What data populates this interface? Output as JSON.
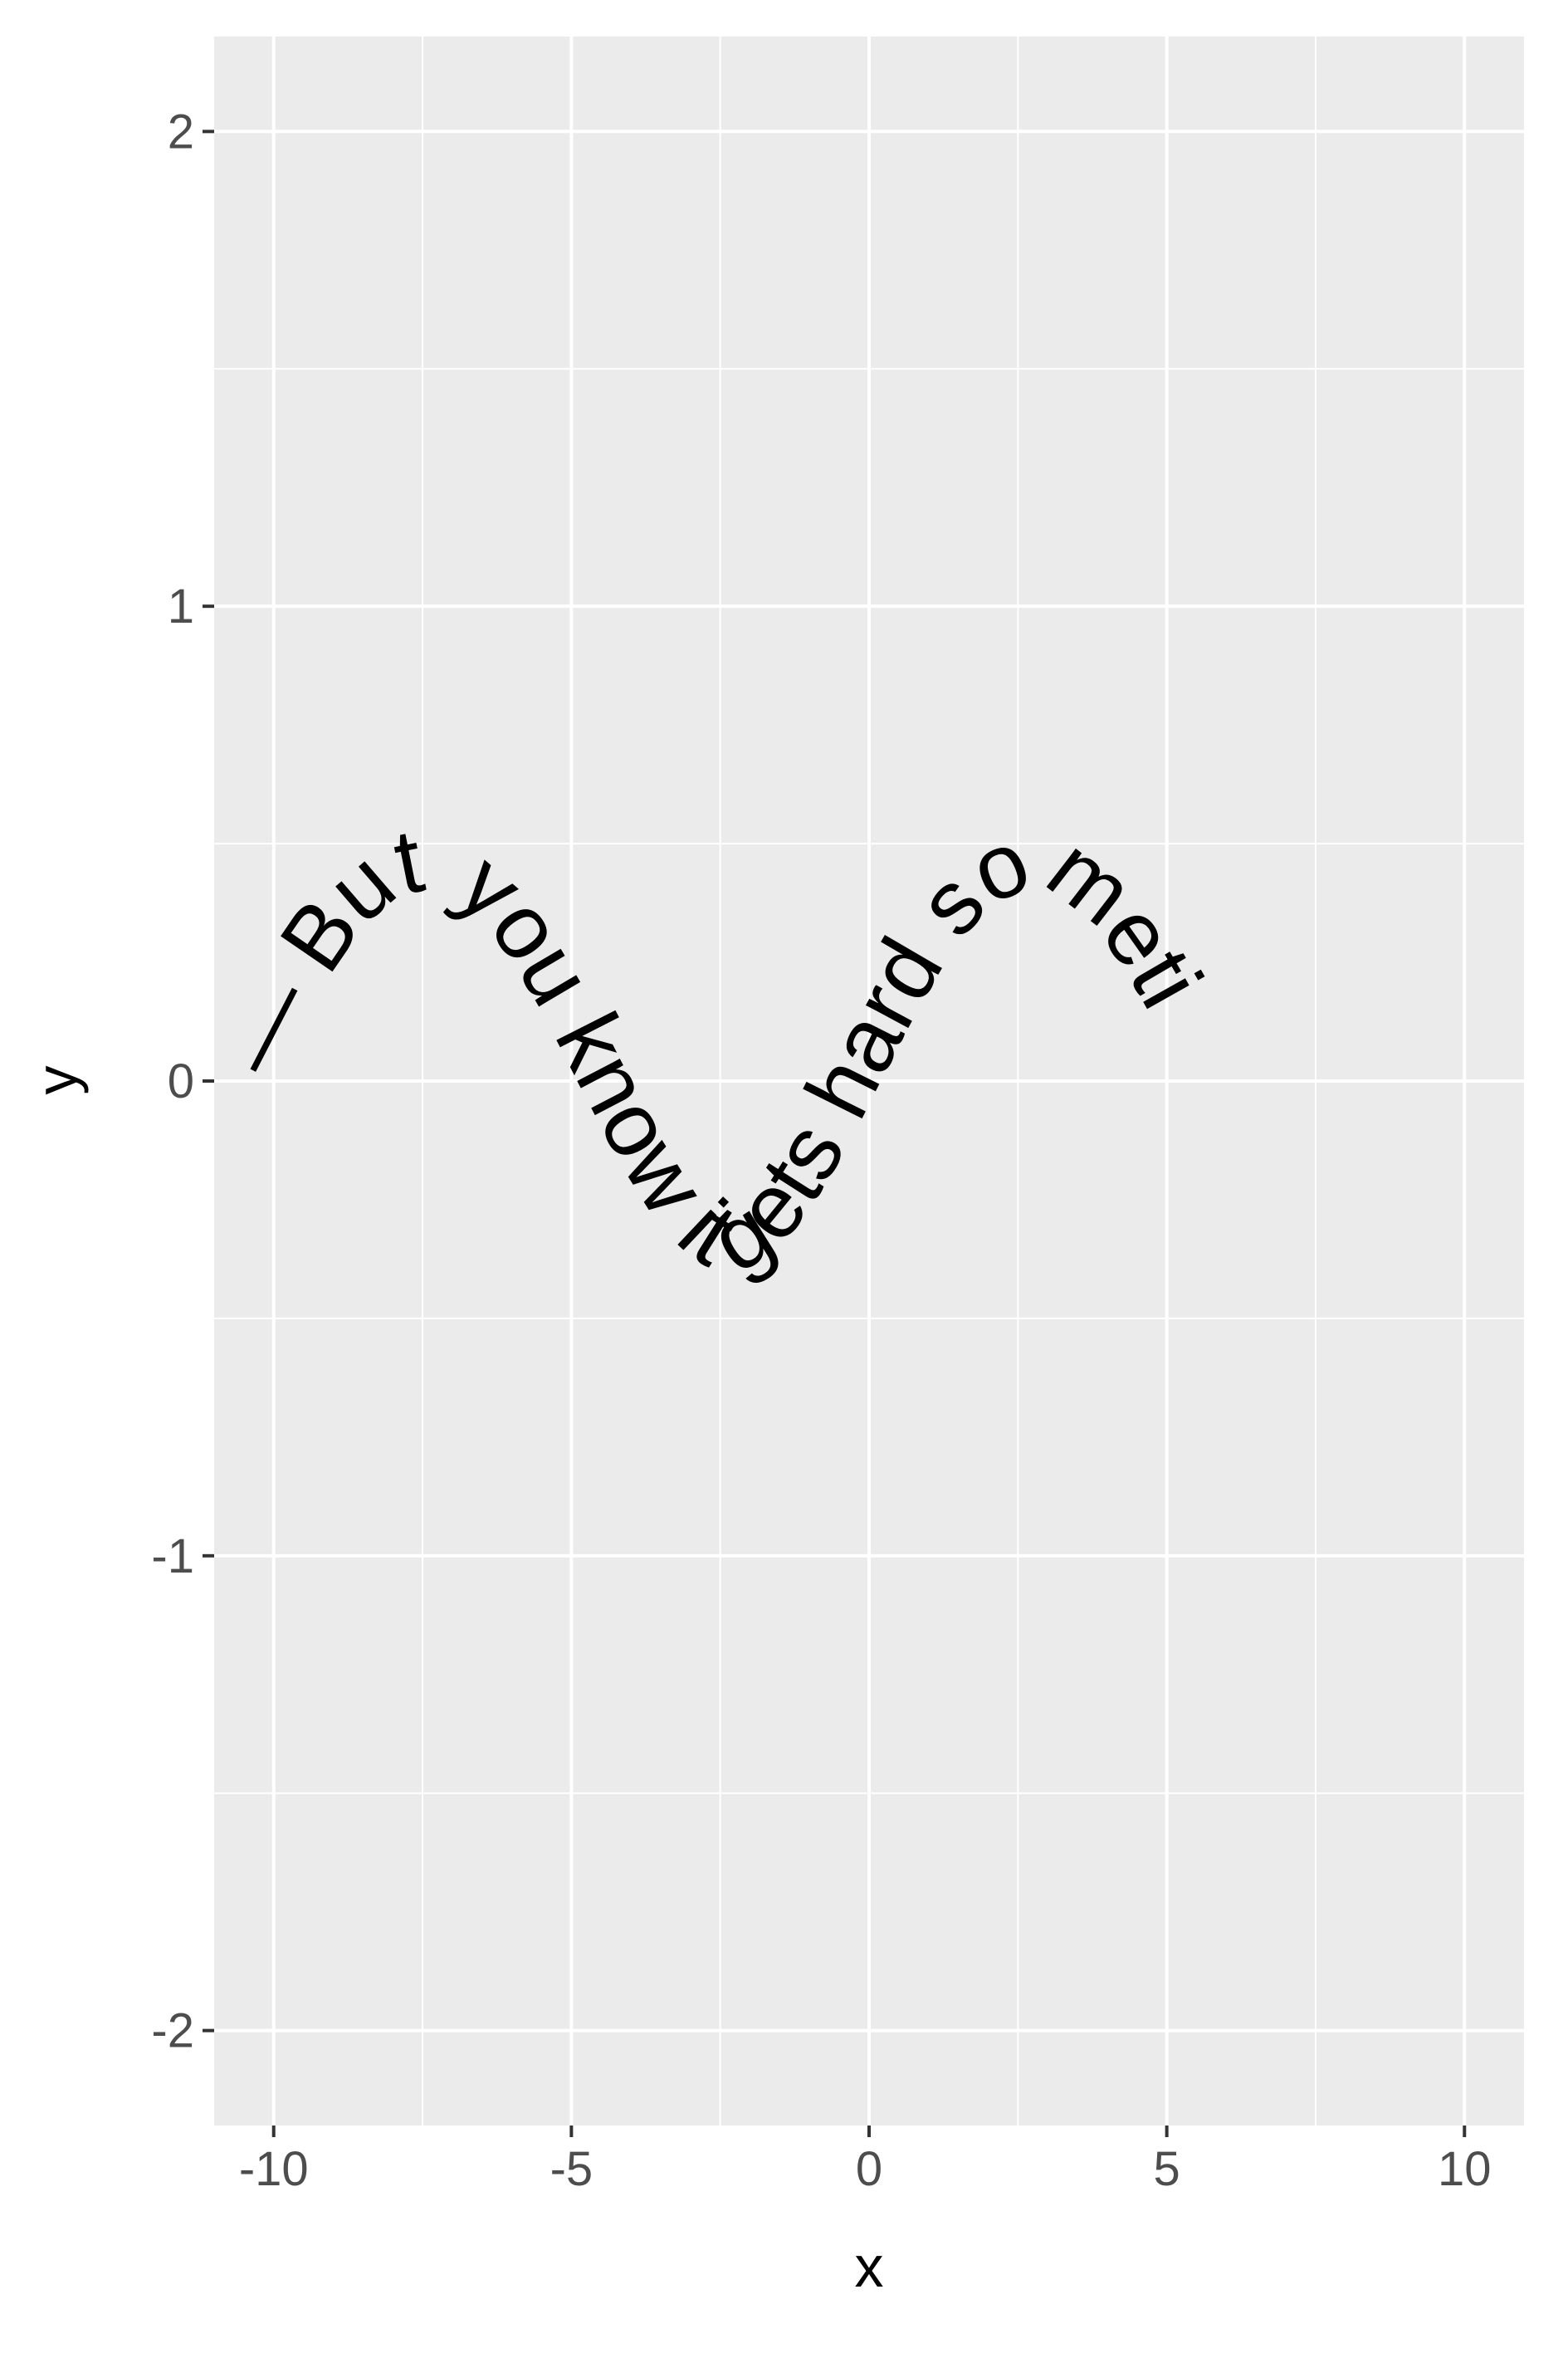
{
  "chart_data": {
    "type": "line",
    "title": "",
    "xlabel": "x",
    "ylabel": "y",
    "xlim": [
      -11,
      11
    ],
    "ylim": [
      -2.2,
      2.2
    ],
    "x_ticks": [
      -10,
      -5,
      0,
      5,
      10
    ],
    "x_tick_labels": [
      "-10",
      "-5",
      "0",
      "5",
      "10"
    ],
    "y_ticks": [
      -2,
      -1,
      0,
      1,
      2
    ],
    "y_tick_labels": [
      "-2",
      "-1",
      "0",
      "1",
      "2"
    ],
    "grid": true,
    "legend": "none",
    "colors": {
      "panel": "#ebebeb",
      "grid": "#ffffff",
      "text": "#000000",
      "tick_text": "#4d4d4d"
    },
    "series": [
      {
        "label_text": "— But you know it gets hard sometimes —",
        "curve": "sine",
        "x_range": [
          -10,
          4.8
        ],
        "amplitude": 0.4,
        "period": 10.2,
        "phase": -10
      }
    ]
  }
}
